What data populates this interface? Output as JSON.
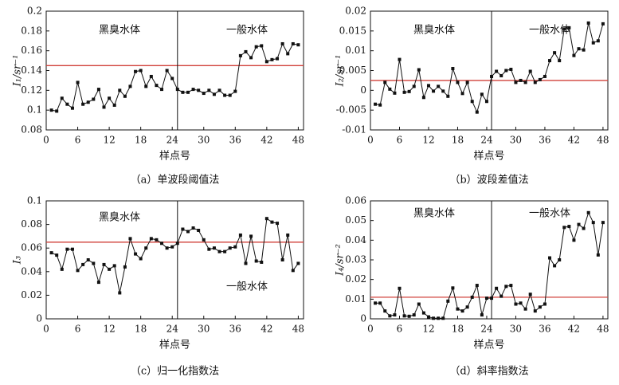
{
  "chart_data": [
    {
      "type": "line",
      "ylabel": "I₁/sr⁻¹",
      "xlabel": "样点号",
      "caption": "（a）单波段阈值法",
      "annotations": [
        "黑臭水体",
        "一般水体"
      ],
      "threshold": 0.145,
      "divider_x": 25,
      "threshold_color": "#d0403a",
      "xlim": [
        0,
        49
      ],
      "xticks": [
        0,
        6,
        12,
        18,
        24,
        30,
        36,
        42,
        48
      ],
      "ylim": [
        0.08,
        0.2
      ],
      "yticks": [
        0.08,
        0.1,
        0.12,
        0.14,
        0.16,
        0.18,
        0.2
      ],
      "x": [
        1,
        2,
        3,
        4,
        5,
        6,
        7,
        8,
        9,
        10,
        11,
        12,
        13,
        14,
        15,
        16,
        17,
        18,
        19,
        20,
        21,
        22,
        23,
        24,
        25,
        26,
        27,
        28,
        29,
        30,
        31,
        32,
        33,
        34,
        35,
        36,
        37,
        38,
        39,
        40,
        41,
        42,
        43,
        44,
        45,
        46,
        47,
        48
      ],
      "series": [
        {
          "color": "#111111",
          "values": [
            0.1,
            0.099,
            0.112,
            0.106,
            0.102,
            0.128,
            0.106,
            0.108,
            0.111,
            0.121,
            0.103,
            0.112,
            0.105,
            0.12,
            0.114,
            0.124,
            0.139,
            0.14,
            0.124,
            0.134,
            0.125,
            0.121,
            0.14,
            0.132,
            0.121,
            0.118,
            0.118,
            0.121,
            0.12,
            0.117,
            0.12,
            0.116,
            0.12,
            0.115,
            0.115,
            0.119,
            0.155,
            0.159,
            0.153,
            0.164,
            0.165,
            0.149,
            0.151,
            0.152,
            0.167,
            0.157,
            0.167,
            0.166
          ]
        }
      ]
    },
    {
      "type": "line",
      "ylabel": "I₂/sr⁻¹",
      "xlabel": "样点号",
      "caption": "（b）波段差值法",
      "annotations": [
        "黑臭水体",
        "一般水体"
      ],
      "threshold": 0.0025,
      "divider_x": 25,
      "threshold_color": "#d0403a",
      "xlim": [
        0,
        49
      ],
      "xticks": [
        0,
        6,
        12,
        18,
        24,
        30,
        36,
        42,
        48
      ],
      "ylim": [
        -0.01,
        0.02
      ],
      "yticks": [
        -0.01,
        -0.005,
        0,
        0.005,
        0.01,
        0.015,
        0.02
      ],
      "x": [
        1,
        2,
        3,
        4,
        5,
        6,
        7,
        8,
        9,
        10,
        11,
        12,
        13,
        14,
        15,
        16,
        17,
        18,
        19,
        20,
        21,
        22,
        23,
        24,
        25,
        26,
        27,
        28,
        29,
        30,
        31,
        32,
        33,
        34,
        35,
        36,
        37,
        38,
        39,
        40,
        41,
        42,
        43,
        44,
        45,
        46,
        47,
        48
      ],
      "series": [
        {
          "color": "#111111",
          "values": [
            -0.0035,
            -0.0037,
            0.002,
            0.0003,
            -0.0007,
            0.0078,
            -0.0005,
            -0.0003,
            0.001,
            0.0052,
            -0.0018,
            0.0012,
            -0.0002,
            0.001,
            -0.0002,
            -0.0015,
            0.0055,
            0.002,
            -0.0008,
            0.002,
            -0.0028,
            -0.0055,
            -0.001,
            -0.0028,
            0.0035,
            0.0048,
            0.0037,
            0.005,
            0.0053,
            0.002,
            0.0025,
            0.002,
            0.0048,
            0.002,
            0.0027,
            0.0035,
            0.0075,
            0.0095,
            0.0075,
            0.0155,
            0.0158,
            0.0088,
            0.0105,
            0.0102,
            0.017,
            0.012,
            0.0125,
            0.0168
          ]
        }
      ]
    },
    {
      "type": "line",
      "ylabel": "I₃",
      "xlabel": "样点号",
      "caption": "（c）归一化指数法",
      "annotations": [
        "黑臭水体",
        "一般水体"
      ],
      "threshold": 0.065,
      "divider_x": 25,
      "threshold_color": "#d0403a",
      "xlim": [
        0,
        49
      ],
      "xticks": [
        0,
        6,
        12,
        18,
        24,
        30,
        36,
        42,
        48
      ],
      "ylim": [
        0,
        0.1
      ],
      "yticks": [
        0,
        0.02,
        0.04,
        0.06,
        0.08,
        0.1
      ],
      "x": [
        1,
        2,
        3,
        4,
        5,
        6,
        7,
        8,
        9,
        10,
        11,
        12,
        13,
        14,
        15,
        16,
        17,
        18,
        19,
        20,
        21,
        22,
        23,
        24,
        25,
        26,
        27,
        28,
        29,
        30,
        31,
        32,
        33,
        34,
        35,
        36,
        37,
        38,
        39,
        40,
        41,
        42,
        43,
        44,
        45,
        46,
        47,
        48
      ],
      "series": [
        {
          "color": "#111111",
          "values": [
            0.056,
            0.054,
            0.042,
            0.059,
            0.059,
            0.041,
            0.046,
            0.05,
            0.047,
            0.031,
            0.046,
            0.042,
            0.045,
            0.022,
            0.044,
            0.068,
            0.055,
            0.051,
            0.06,
            0.068,
            0.067,
            0.064,
            0.06,
            0.061,
            0.064,
            0.076,
            0.074,
            0.077,
            0.075,
            0.067,
            0.059,
            0.06,
            0.057,
            0.057,
            0.06,
            0.061,
            0.071,
            0.047,
            0.07,
            0.049,
            0.048,
            0.085,
            0.082,
            0.081,
            0.05,
            0.071,
            0.041,
            0.047
          ]
        }
      ]
    },
    {
      "type": "line",
      "ylabel": "I₄/sr⁻²",
      "xlabel": "样点号",
      "caption": "（d）斜率指数法",
      "annotations": [
        "黑臭水体",
        "一般水体"
      ],
      "threshold": 0.011,
      "divider_x": 25,
      "threshold_color": "#d0403a",
      "xlim": [
        0,
        49
      ],
      "xticks": [
        0,
        6,
        12,
        18,
        24,
        30,
        36,
        42,
        48
      ],
      "ylim": [
        0,
        0.06
      ],
      "yticks": [
        0,
        0.01,
        0.02,
        0.03,
        0.04,
        0.05,
        0.06
      ],
      "x": [
        1,
        2,
        3,
        4,
        5,
        6,
        7,
        8,
        9,
        10,
        11,
        12,
        13,
        14,
        15,
        16,
        17,
        18,
        19,
        20,
        21,
        22,
        23,
        24,
        25,
        26,
        27,
        28,
        29,
        30,
        31,
        32,
        33,
        34,
        35,
        36,
        37,
        38,
        39,
        40,
        41,
        42,
        43,
        44,
        45,
        46,
        47,
        48
      ],
      "series": [
        {
          "color": "#111111",
          "values": [
            0.008,
            0.008,
            0.004,
            0.0015,
            0.002,
            0.0155,
            0.0015,
            0.0013,
            0.002,
            0.0075,
            0.003,
            0.001,
            0.0003,
            0.0003,
            0.0003,
            0.009,
            0.0157,
            0.005,
            0.004,
            0.006,
            0.011,
            0.017,
            0.002,
            0.0105,
            0.0105,
            0.0155,
            0.0115,
            0.0165,
            0.017,
            0.0075,
            0.008,
            0.005,
            0.0125,
            0.004,
            0.006,
            0.0075,
            0.031,
            0.027,
            0.03,
            0.0465,
            0.047,
            0.04,
            0.048,
            0.046,
            0.054,
            0.049,
            0.0325,
            0.049
          ]
        }
      ]
    }
  ]
}
